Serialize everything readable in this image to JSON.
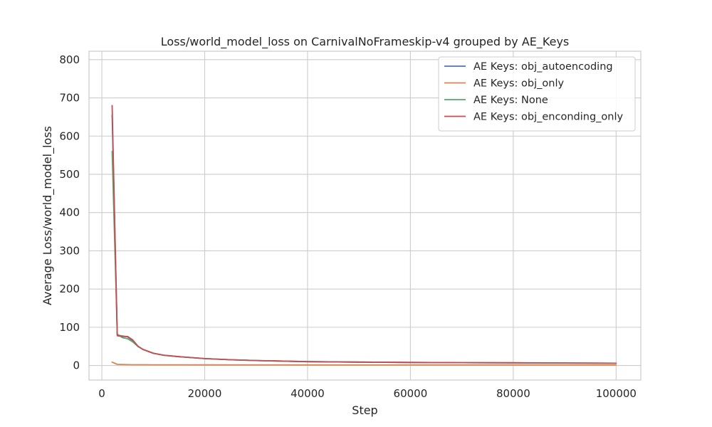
{
  "chart_data": {
    "type": "line",
    "title": "Loss/world_model_loss on CarnivalNoFrameskip-v4 grouped by AE_Keys",
    "xlabel": "Step",
    "ylabel": "Average Loss/world_model_loss",
    "xlim": [
      -2500,
      104800
    ],
    "ylim": [
      -38,
      822
    ],
    "xticks": [
      0,
      20000,
      40000,
      60000,
      80000,
      100000
    ],
    "xtick_labels": [
      "0",
      "20000",
      "40000",
      "60000",
      "80000",
      "100000"
    ],
    "yticks": [
      0,
      100,
      200,
      300,
      400,
      500,
      600,
      700,
      800
    ],
    "ytick_labels": [
      "0",
      "100",
      "200",
      "300",
      "400",
      "500",
      "600",
      "700",
      "800"
    ],
    "grid": true,
    "legend_position": "top-right",
    "series": [
      {
        "name": "AE Keys: obj_autoencoding",
        "color": "#4c72b0",
        "x": [
          2000,
          3000,
          4000,
          5000,
          6000,
          7000,
          8000,
          10000,
          12000,
          15000,
          20000,
          25000,
          30000,
          40000,
          50000,
          60000,
          70000,
          80000,
          90000,
          100000
        ],
        "y": [
          655,
          80,
          77,
          75,
          65,
          50,
          42,
          32,
          27,
          23,
          18,
          15,
          13,
          10,
          9,
          8,
          7.5,
          7,
          6.5,
          6
        ]
      },
      {
        "name": "AE Keys: obj_only",
        "color": "#dd8452",
        "x": [
          2000,
          3000,
          4000,
          5000,
          6000,
          8000,
          10000,
          20000,
          40000,
          60000,
          80000,
          100000
        ],
        "y": [
          9,
          3,
          2.5,
          2.2,
          2,
          2,
          1.8,
          1.6,
          1.4,
          1.3,
          1.2,
          1.2
        ]
      },
      {
        "name": "AE Keys: None",
        "color": "#55a868",
        "x": [
          2000,
          3000,
          4000,
          5000,
          6000,
          7000,
          8000,
          10000,
          12000,
          15000,
          20000,
          25000,
          30000,
          40000,
          50000,
          60000,
          70000,
          80000,
          90000,
          100000
        ],
        "y": [
          560,
          82,
          73,
          70,
          62,
          50,
          42,
          32,
          27,
          23,
          18,
          15,
          13,
          10,
          9,
          8,
          7.5,
          7,
          6.5,
          6
        ]
      },
      {
        "name": "AE Keys: obj_enconding_only",
        "color": "#c44e52",
        "x": [
          2000,
          3000,
          4000,
          5000,
          6000,
          7000,
          8000,
          10000,
          12000,
          15000,
          20000,
          25000,
          30000,
          40000,
          50000,
          60000,
          70000,
          80000,
          90000,
          100000
        ],
        "y": [
          680,
          78,
          76,
          76,
          67,
          51,
          42,
          32,
          27,
          23,
          18,
          15,
          13,
          10,
          9,
          8,
          7.5,
          7,
          6.5,
          6
        ]
      }
    ]
  }
}
